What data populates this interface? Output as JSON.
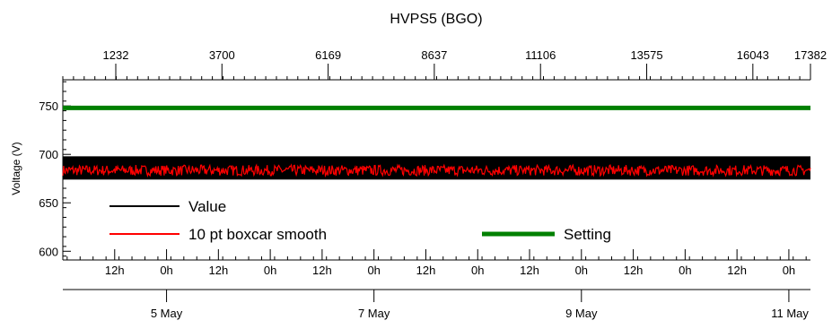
{
  "chart_data": {
    "type": "line",
    "title": "HVPS5 (BGO)",
    "xlabel": "",
    "ylabel": "Voltage (V)",
    "ylim": [
      591,
      777
    ],
    "yticks": [
      600,
      650,
      700,
      750
    ],
    "top_axis": {
      "range": [
        1,
        17382
      ],
      "ticks": [
        1232,
        3700,
        6169,
        8637,
        11106,
        13575,
        16043,
        17382
      ]
    },
    "bottom_axis": {
      "range_hours": [
        0,
        173
      ],
      "hour_labels": [
        {
          "t": 12,
          "label": "12h"
        },
        {
          "t": 24,
          "label": "0h"
        },
        {
          "t": 36,
          "label": "12h"
        },
        {
          "t": 48,
          "label": "0h"
        },
        {
          "t": 60,
          "label": "12h"
        },
        {
          "t": 72,
          "label": "0h"
        },
        {
          "t": 84,
          "label": "12h"
        },
        {
          "t": 96,
          "label": "0h"
        },
        {
          "t": 108,
          "label": "12h"
        },
        {
          "t": 120,
          "label": "0h"
        },
        {
          "t": 132,
          "label": "12h"
        },
        {
          "t": 144,
          "label": "0h"
        },
        {
          "t": 156,
          "label": "12h"
        },
        {
          "t": 168,
          "label": "0h"
        }
      ],
      "date_labels": [
        {
          "t": 24,
          "label": "5 May"
        },
        {
          "t": 72,
          "label": "7 May"
        },
        {
          "t": 120,
          "label": "9 May"
        },
        {
          "t": 168,
          "label": "11 May"
        }
      ]
    },
    "series": [
      {
        "name": "Value",
        "color": "#000000",
        "band": [
          674,
          698
        ],
        "mean": 686
      },
      {
        "name": "10 pt boxcar smooth",
        "color": "#ff0000",
        "band": [
          678,
          689
        ],
        "mean": 683
      },
      {
        "name": "Setting",
        "color": "#008000",
        "value": 748
      }
    ],
    "legend": "bottom-left",
    "grid": false
  }
}
